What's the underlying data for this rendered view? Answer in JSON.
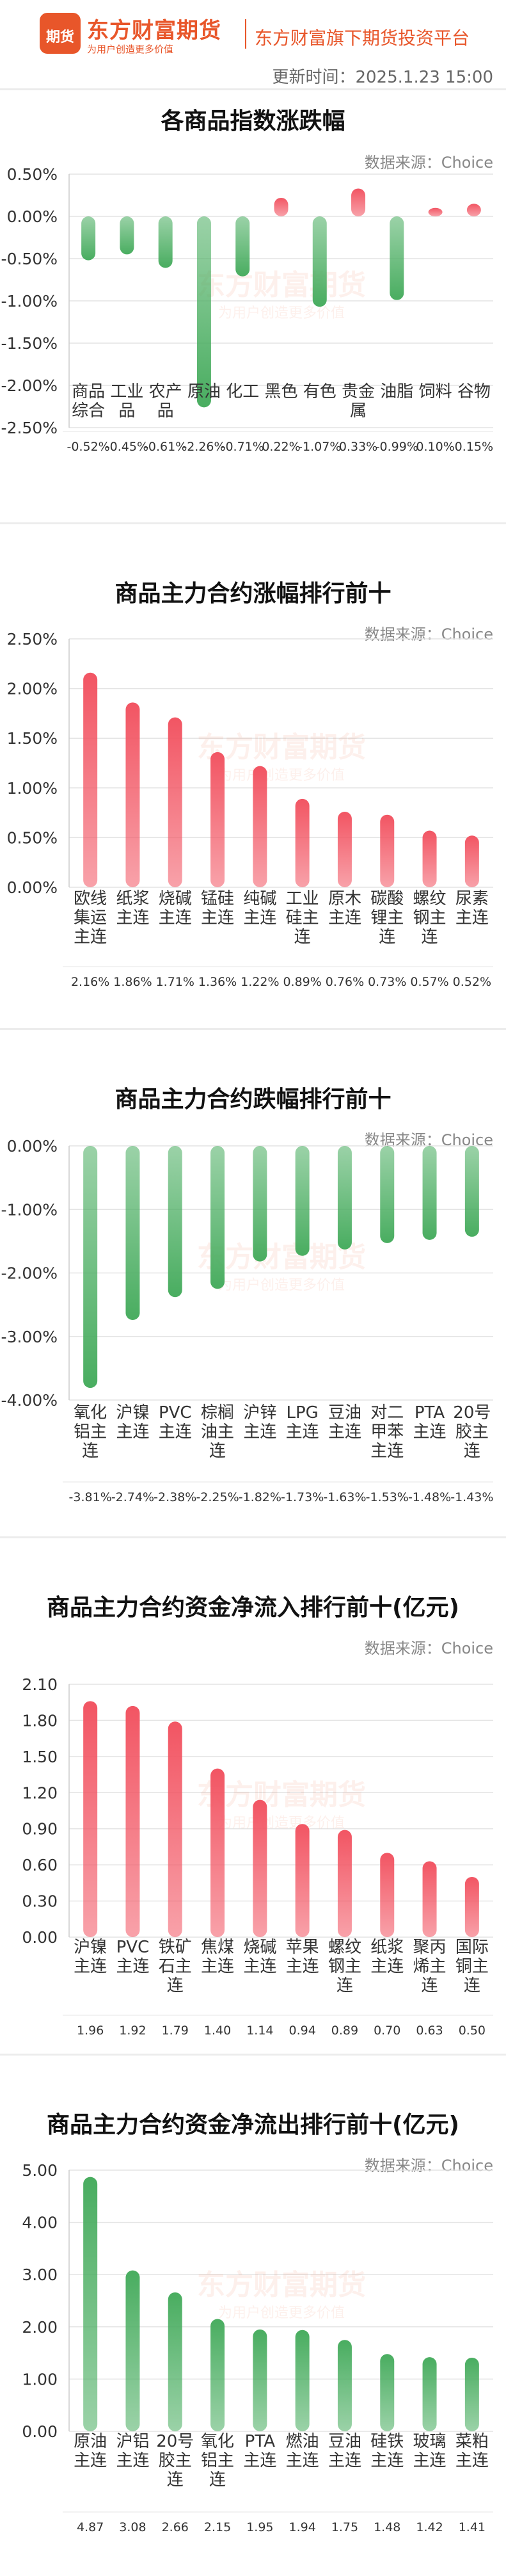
{
  "header": {
    "logo_text": "期货",
    "brand": "东方财富期货",
    "slogan": "为用户创造更多价值",
    "platform": "东方财富旗下期货投资平台",
    "update_time": "更新时间：2025.1.23 15:00",
    "watermark": "东方财富期货",
    "watermark_sub": "为用户创造更多价值",
    "accent_color": "#e8562a"
  },
  "charts": [
    {
      "title": "各商品指数涨跌幅",
      "source": "数据来源：Choice",
      "chart_data": {
        "type": "bar",
        "categories": [
          [
            "商品",
            "综合"
          ],
          [
            "工业",
            "品"
          ],
          [
            "农产",
            "品"
          ],
          [
            "原油"
          ],
          [
            "化工"
          ],
          [
            "黑色"
          ],
          [
            "有色"
          ],
          [
            "贵金",
            "属"
          ],
          [
            "油脂"
          ],
          [
            "饲料"
          ],
          [
            "谷物"
          ]
        ],
        "values": [
          -0.52,
          -0.45,
          -0.61,
          -2.26,
          -0.71,
          0.22,
          -1.07,
          0.33,
          -0.99,
          0.1,
          0.15
        ],
        "value_labels": [
          "-0.52%",
          "-0.45%",
          "-0.61%",
          "-2.26%",
          "-0.71%",
          "0.22%",
          "-1.07%",
          "0.33%",
          "-0.99%",
          "0.10%",
          "0.15%"
        ],
        "yticks": [
          "0.50%",
          "0.00%",
          "-0.50%",
          "-1.00%",
          "-1.50%",
          "-2.00%",
          "-2.50%"
        ],
        "ytick_values": [
          0.5,
          0,
          -0.5,
          -1.0,
          -1.5,
          -2.0,
          -2.5
        ],
        "ylim": [
          -2.5,
          0.5
        ],
        "positive_color": "#f25563",
        "negative_color": "#49ad60"
      }
    },
    {
      "title": "商品主力合约涨幅排行前十",
      "source": "数据来源：Choice",
      "chart_data": {
        "type": "bar",
        "categories": [
          [
            "欧线",
            "集运",
            "主连"
          ],
          [
            "纸浆",
            "主连"
          ],
          [
            "烧碱",
            "主连"
          ],
          [
            "锰硅",
            "主连"
          ],
          [
            "纯碱",
            "主连"
          ],
          [
            "工业",
            "硅主",
            "连"
          ],
          [
            "原木",
            "主连"
          ],
          [
            "碳酸",
            "锂主",
            "连"
          ],
          [
            "螺纹",
            "钢主",
            "连"
          ],
          [
            "尿素",
            "主连"
          ]
        ],
        "values": [
          2.16,
          1.86,
          1.71,
          1.36,
          1.22,
          0.89,
          0.76,
          0.73,
          0.57,
          0.52
        ],
        "value_labels": [
          "2.16%",
          "1.86%",
          "1.71%",
          "1.36%",
          "1.22%",
          "0.89%",
          "0.76%",
          "0.73%",
          "0.57%",
          "0.52%"
        ],
        "yticks": [
          "2.50%",
          "2.00%",
          "1.50%",
          "1.00%",
          "0.50%",
          "0.00%"
        ],
        "ytick_values": [
          2.5,
          2.0,
          1.5,
          1.0,
          0.5,
          0
        ],
        "ylim": [
          0,
          2.5
        ],
        "positive_color": "#f25563",
        "negative_color": "#49ad60"
      }
    },
    {
      "title": "商品主力合约跌幅排行前十",
      "source": "数据来源：Choice",
      "chart_data": {
        "type": "bar",
        "categories": [
          [
            "氧化",
            "铝主",
            "连"
          ],
          [
            "沪镍",
            "主连"
          ],
          [
            "PVC",
            "主连"
          ],
          [
            "棕榈",
            "油主",
            "连"
          ],
          [
            "沪锌",
            "主连"
          ],
          [
            "LPG",
            "主连"
          ],
          [
            "豆油",
            "主连"
          ],
          [
            "对二",
            "甲苯",
            "主连"
          ],
          [
            "PTA",
            "主连"
          ],
          [
            "20号",
            "胶主",
            "连"
          ]
        ],
        "values": [
          -3.81,
          -2.74,
          -2.38,
          -2.25,
          -1.82,
          -1.73,
          -1.63,
          -1.53,
          -1.48,
          -1.43
        ],
        "value_labels": [
          "-3.81%",
          "-2.74%",
          "-2.38%",
          "-2.25%",
          "-1.82%",
          "-1.73%",
          "-1.63%",
          "-1.53%",
          "-1.48%",
          "-1.43%"
        ],
        "yticks": [
          "0.00%",
          "-1.00%",
          "-2.00%",
          "-3.00%",
          "-4.00%"
        ],
        "ytick_values": [
          0,
          -1.0,
          -2.0,
          -3.0,
          -4.0
        ],
        "ylim": [
          -4.0,
          0
        ],
        "positive_color": "#f25563",
        "negative_color": "#49ad60"
      }
    },
    {
      "title": "商品主力合约资金净流入排行前十(亿元)",
      "source": "数据来源：Choice",
      "chart_data": {
        "type": "bar",
        "categories": [
          [
            "沪镍",
            "主连"
          ],
          [
            "PVC",
            "主连"
          ],
          [
            "铁矿",
            "石主",
            "连"
          ],
          [
            "焦煤",
            "主连"
          ],
          [
            "烧碱",
            "主连"
          ],
          [
            "苹果",
            "主连"
          ],
          [
            "螺纹",
            "钢主",
            "连"
          ],
          [
            "纸浆",
            "主连"
          ],
          [
            "聚丙",
            "烯主",
            "连"
          ],
          [
            "国际",
            "铜主",
            "连"
          ]
        ],
        "values": [
          1.96,
          1.92,
          1.79,
          1.4,
          1.14,
          0.94,
          0.89,
          0.7,
          0.63,
          0.5
        ],
        "value_labels": [
          "1.96",
          "1.92",
          "1.79",
          "1.40",
          "1.14",
          "0.94",
          "0.89",
          "0.70",
          "0.63",
          "0.50"
        ],
        "yticks": [
          "2.10",
          "1.80",
          "1.50",
          "1.20",
          "0.90",
          "0.60",
          "0.30",
          "0.00"
        ],
        "ytick_values": [
          2.1,
          1.8,
          1.5,
          1.2,
          0.9,
          0.6,
          0.3,
          0
        ],
        "ylim": [
          0,
          2.1
        ],
        "positive_color": "#f25563",
        "negative_color": "#49ad60"
      }
    },
    {
      "title": "商品主力合约资金净流出排行前十(亿元)",
      "source": "数据来源：Choice",
      "chart_data": {
        "type": "bar",
        "categories": [
          [
            "原油",
            "主连"
          ],
          [
            "沪铝",
            "主连"
          ],
          [
            "20号",
            "胶主",
            "连"
          ],
          [
            "氧化",
            "铝主",
            "连"
          ],
          [
            "PTA",
            "主连"
          ],
          [
            "燃油",
            "主连"
          ],
          [
            "豆油",
            "主连"
          ],
          [
            "硅铁",
            "主连"
          ],
          [
            "玻璃",
            "主连"
          ],
          [
            "菜粕",
            "主连"
          ]
        ],
        "values": [
          4.87,
          3.08,
          2.66,
          2.15,
          1.95,
          1.94,
          1.75,
          1.48,
          1.42,
          1.41
        ],
        "value_labels": [
          "4.87",
          "3.08",
          "2.66",
          "2.15",
          "1.95",
          "1.94",
          "1.75",
          "1.48",
          "1.42",
          "1.41"
        ],
        "yticks": [
          "5.00",
          "4.00",
          "3.00",
          "2.00",
          "1.00",
          "0.00"
        ],
        "ytick_values": [
          5,
          4,
          3,
          2,
          1,
          0
        ],
        "ylim": [
          0,
          5.0
        ],
        "positive_color": "#49ad60",
        "negative_color": "#49ad60"
      }
    }
  ]
}
